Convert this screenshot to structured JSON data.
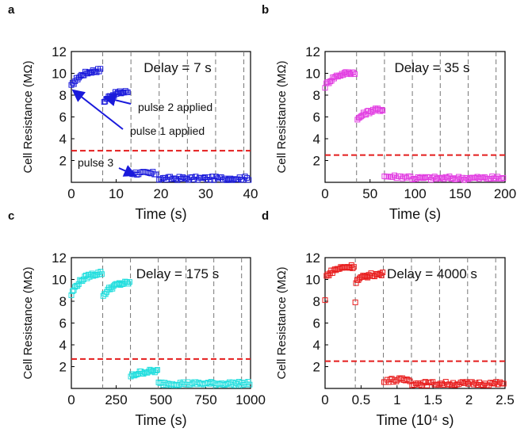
{
  "panels": [
    {
      "letter": "a",
      "ylabel": "Cell Resistance (MΩ)",
      "xlabel": "Time (s)",
      "xticks": [
        "0",
        "10",
        "20",
        "30",
        "40"
      ],
      "yticks": [
        "2",
        "4",
        "6",
        "8",
        "10",
        "12"
      ],
      "annotation": "Delay = 7 s",
      "color": "#1a1adb",
      "threshold": 2.9,
      "pulse_lines": [
        7,
        13.3,
        19.6,
        25.9,
        32.2,
        38.5
      ],
      "callouts": [
        {
          "text": "pulse 2 applied",
          "target": [
            7.4,
            7.9
          ]
        },
        {
          "text": "pulse 1 applied",
          "target": [
            0.3,
            8.5
          ]
        },
        {
          "text": "pulse 3",
          "target": [
            13.6,
            0.85
          ]
        }
      ]
    },
    {
      "letter": "b",
      "ylabel": "Cell Resistance (MΩ)",
      "xlabel": "Time (s)",
      "xticks": [
        "0",
        "50",
        "100",
        "150",
        "200"
      ],
      "yticks": [
        "2",
        "4",
        "6",
        "8",
        "10",
        "12"
      ],
      "annotation": "Delay = 35 s",
      "color": "#e23ee2",
      "threshold": 2.5,
      "pulse_lines": [
        35,
        66,
        97,
        128,
        159,
        190
      ]
    },
    {
      "letter": "c",
      "ylabel": "Cell Resistance (MΩ)",
      "xlabel": "Time (s)",
      "xticks": [
        "0",
        "250",
        "500",
        "750",
        "1000"
      ],
      "yticks": [
        "2",
        "4",
        "6",
        "8",
        "10",
        "12"
      ],
      "annotation": "Delay = 175 s",
      "color": "#22dede",
      "threshold": 2.7,
      "pulse_lines": [
        175,
        330,
        485,
        640,
        795,
        950
      ]
    },
    {
      "letter": "d",
      "ylabel": "Cell Resistance (MΩ)",
      "xlabel": "Time (10⁴ s)",
      "xticks": [
        "0",
        "0.5",
        "1",
        "1.5",
        "2",
        "2.5"
      ],
      "yticks": [
        "2",
        "4",
        "6",
        "8",
        "10",
        "12"
      ],
      "annotation": "Delay = 4000 s",
      "color": "#e81c1c",
      "threshold": 2.5,
      "pulse_lines": [
        0.42,
        0.81,
        1.2,
        1.59,
        1.98,
        2.37
      ]
    }
  ],
  "chart_data": [
    {
      "type": "scatter",
      "panel": "a",
      "xlabel": "Time (s)",
      "ylabel": "Cell Resistance (MΩ)",
      "xlim": [
        0,
        40
      ],
      "ylim": [
        0,
        12
      ],
      "threshold_line": 2.9,
      "segments": [
        {
          "x_start": 0,
          "x_end": 6.5,
          "y_start": 8.8,
          "y_end": 10.3,
          "n": 24,
          "shape": "rise"
        },
        {
          "x_start": 7.3,
          "x_end": 12.6,
          "y_start": 7.4,
          "y_end": 8.3,
          "n": 22,
          "shape": "rise"
        },
        {
          "x_start": 13.6,
          "x_end": 18.9,
          "y_start": 0.85,
          "y_end": 0.8,
          "n": 16,
          "shape": "flat"
        },
        {
          "x_start": 19.6,
          "x_end": 39.6,
          "y_start": 0.35,
          "y_end": 0.38,
          "n": 50,
          "shape": "flat"
        }
      ]
    },
    {
      "type": "scatter",
      "panel": "b",
      "xlabel": "Time (s)",
      "ylabel": "Cell Resistance (MΩ)",
      "xlim": [
        0,
        200
      ],
      "ylim": [
        0,
        12
      ],
      "threshold_line": 2.5,
      "segments": [
        {
          "x_start": 0,
          "x_end": 33,
          "y_start": 8.8,
          "y_end": 10.1,
          "n": 24,
          "shape": "rise"
        },
        {
          "x_start": 36,
          "x_end": 64,
          "y_start": 5.7,
          "y_end": 6.7,
          "n": 22,
          "shape": "rise"
        },
        {
          "x_start": 66,
          "x_end": 95,
          "y_start": 0.55,
          "y_end": 0.5,
          "n": 14,
          "shape": "flat"
        },
        {
          "x_start": 97,
          "x_end": 198,
          "y_start": 0.38,
          "y_end": 0.4,
          "n": 50,
          "shape": "flat"
        }
      ]
    },
    {
      "type": "scatter",
      "panel": "c",
      "xlabel": "Time (s)",
      "ylabel": "Cell Resistance (MΩ)",
      "xlim": [
        0,
        1000
      ],
      "ylim": [
        0,
        12
      ],
      "threshold_line": 2.7,
      "segments": [
        {
          "x_start": 0,
          "x_end": 170,
          "y_start": 8.6,
          "y_end": 10.6,
          "n": 26,
          "shape": "rise"
        },
        {
          "x_start": 178,
          "x_end": 325,
          "y_start": 8.5,
          "y_end": 9.7,
          "n": 24,
          "shape": "rise"
        },
        {
          "x_start": 332,
          "x_end": 480,
          "y_start": 1.1,
          "y_end": 1.6,
          "n": 22,
          "shape": "rise"
        },
        {
          "x_start": 487,
          "x_end": 995,
          "y_start": 0.45,
          "y_end": 0.45,
          "n": 60,
          "shape": "flat"
        }
      ]
    },
    {
      "type": "scatter",
      "panel": "d",
      "xlabel": "Time (10⁴ s)",
      "ylabel": "Cell Resistance (MΩ)",
      "xlim": [
        0,
        2.5
      ],
      "ylim": [
        0,
        12
      ],
      "threshold_line": 2.5,
      "segments": [
        {
          "x_start": 0.02,
          "x_end": 0.4,
          "y_start": 10.3,
          "y_end": 11.2,
          "n": 24,
          "shape": "rise"
        },
        {
          "x_start": 0.43,
          "x_end": 0.8,
          "y_start": 9.8,
          "y_end": 10.5,
          "n": 24,
          "shape": "rise"
        },
        {
          "x_start": 0.82,
          "x_end": 1.18,
          "y_start": 0.75,
          "y_end": 0.8,
          "n": 18,
          "shape": "flat"
        },
        {
          "x_start": 1.21,
          "x_end": 2.48,
          "y_start": 0.45,
          "y_end": 0.45,
          "n": 50,
          "shape": "flat"
        }
      ],
      "outliers": [
        {
          "x": 0.0,
          "y": 8.1
        },
        {
          "x": 0.42,
          "y": 7.9
        }
      ]
    }
  ]
}
